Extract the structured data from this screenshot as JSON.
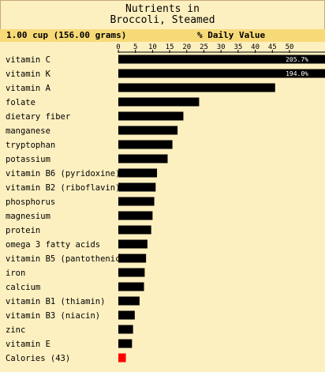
{
  "title": {
    "line1": "Nutrients in",
    "line2": "Broccoli, Steamed"
  },
  "header": {
    "serving": "1.00 cup (156.00 grams)",
    "axis_title": "% Daily Value"
  },
  "colors": {
    "bar": "#000000",
    "calories_bar": "#ff0000",
    "header_bg": "#f7da78",
    "background": "#fdf0c0"
  },
  "chart_data": {
    "type": "bar",
    "orientation": "horizontal",
    "xlim": [
      0,
      50
    ],
    "xticks": [
      0,
      5,
      10,
      15,
      20,
      25,
      30,
      35,
      40,
      45,
      50
    ],
    "categories": [
      "vitamin C",
      "vitamin K",
      "vitamin A",
      "folate",
      "dietary fiber",
      "manganese",
      "tryptophan",
      "potassium",
      "vitamin B6 (pyridoxine)",
      "vitamin B2 (riboflavin)",
      "phosphorus",
      "magnesium",
      "protein",
      "omega 3 fatty acids",
      "vitamin B5 (pantothenic",
      "iron",
      "calcium",
      "vitamin B1 (thiamin)",
      "vitamin B3 (niacin)",
      "zinc",
      "vitamin E",
      "Calories (43)"
    ],
    "values": [
      205.7,
      194.0,
      45.8,
      23.6,
      19.0,
      17.3,
      15.8,
      14.4,
      11.3,
      10.9,
      10.5,
      10.0,
      9.6,
      8.5,
      8.1,
      7.7,
      7.5,
      6.2,
      4.8,
      4.3,
      4.0,
      2.2
    ],
    "value_labels": [
      "205.7%",
      "194.0%",
      "",
      "",
      "",
      "",
      "",
      "",
      "",
      "",
      "",
      "",
      "",
      "",
      "",
      "",
      "",
      "",
      "",
      "",
      "",
      ""
    ],
    "grid": false
  }
}
